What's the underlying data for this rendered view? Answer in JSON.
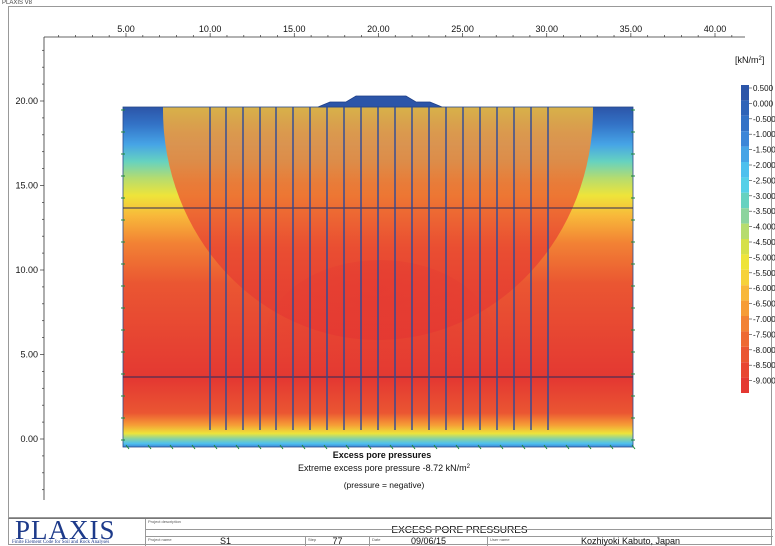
{
  "window": {
    "app_tag": "PLAXIS V8"
  },
  "plot": {
    "unit_label": "[kN/m",
    "unit_sup": "2",
    "unit_tail": "]",
    "title": "Excess pore pressures",
    "extreme_text": "Extreme excess pore pressure -8.72 kN/m",
    "extreme_sup": "2",
    "note": "(pressure = negative)",
    "x_ticks": [
      "5.00",
      "10.00",
      "15.00",
      "20.00",
      "25.00",
      "30.00",
      "35.00",
      "40.00"
    ],
    "y_ticks": [
      "20.00",
      "15.00",
      "10.00",
      "5.00",
      "0.00"
    ]
  },
  "legend": {
    "values": [
      "0.500",
      "0.000",
      "-0.500",
      "-1.000",
      "-1.500",
      "-2.000",
      "-2.500",
      "-3.000",
      "-3.500",
      "-4.000",
      "-4.500",
      "-5.000",
      "-5.500",
      "-6.000",
      "-6.500",
      "-7.000",
      "-7.500",
      "-8.000",
      "-8.500",
      "-9.000"
    ],
    "colors": [
      "#2c55a8",
      "#2f64b8",
      "#3372c6",
      "#3c86d8",
      "#46a4e6",
      "#4ec0ee",
      "#55d0e8",
      "#66d2c0",
      "#8cd49e",
      "#b6dc6e",
      "#d6e04a",
      "#eee43a",
      "#f6d23a",
      "#f8b83a",
      "#f69c36",
      "#f28234",
      "#ee6a32",
      "#ea5632",
      "#e84632",
      "#e43832"
    ]
  },
  "footer": {
    "logo_main": "PLAXIS",
    "logo_sub": "Finite Element Code for Soil and Rock Analyses",
    "project_description_label": "Project description",
    "project_description": "EXCESS PORE PRESSURES",
    "project_name_label": "Project name",
    "project_name": "S1",
    "step_label": "Step",
    "step": "77",
    "date_label": "Date",
    "date": "09/06/15",
    "user_label": "User name",
    "user": "Kozhiyoki Kabuto, Japan"
  }
}
